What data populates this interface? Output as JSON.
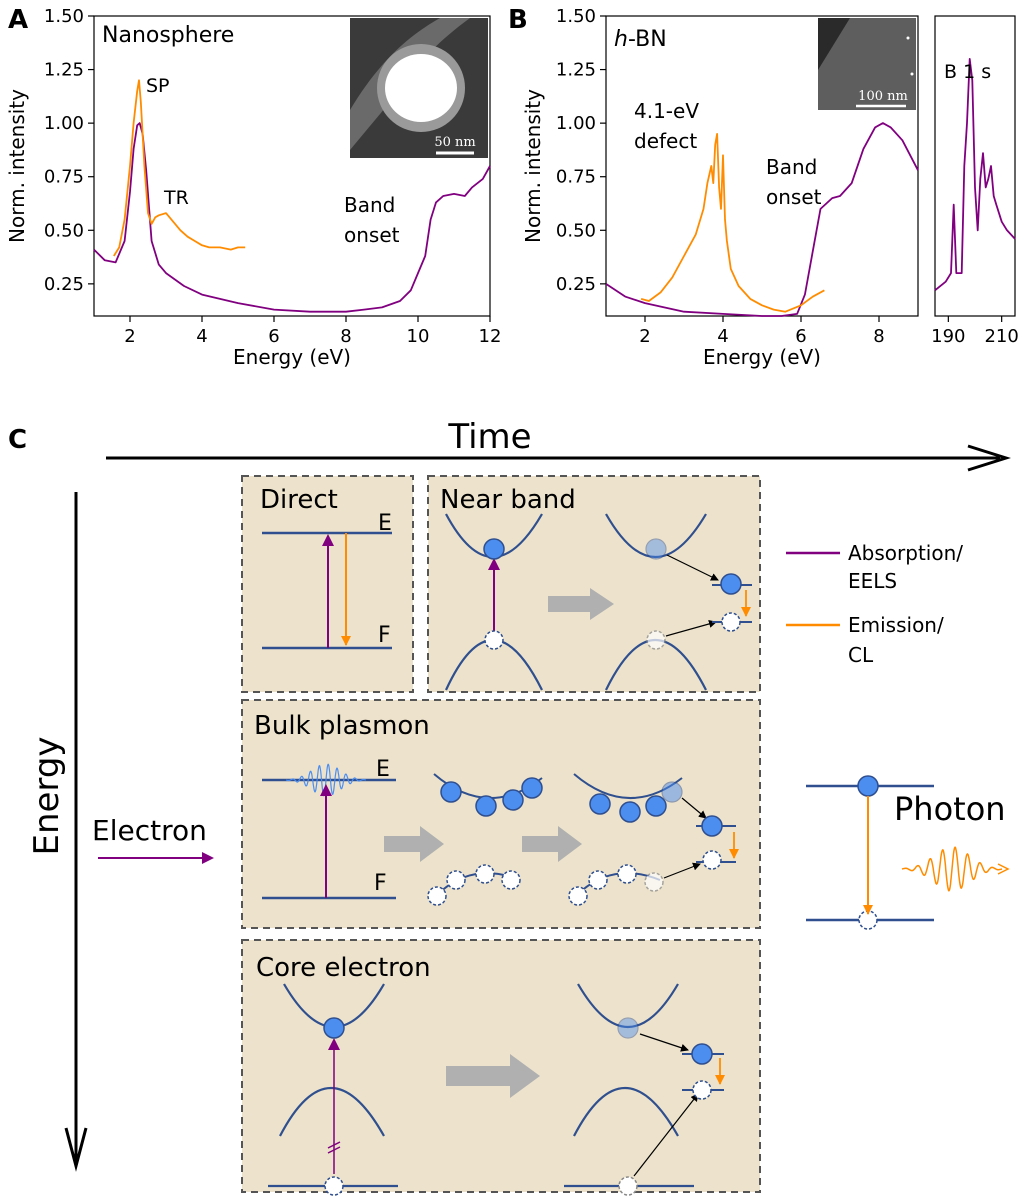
{
  "panels": {
    "A": {
      "letter": "A",
      "title": "Nanosphere",
      "xlabel": "Energy (eV)",
      "ylabel": "Norm. intensity",
      "xticks": [
        "2",
        "4",
        "6",
        "8",
        "10",
        "12"
      ],
      "yticks": [
        "0.25",
        "0.50",
        "0.75",
        "1.00",
        "1.25",
        "1.50"
      ],
      "annotations": {
        "sp": "SP",
        "tr": "TR",
        "band1": "Band",
        "band2": "onset"
      },
      "inset_scale": "50 nm"
    },
    "B": {
      "letter": "B",
      "title_italic": "h",
      "title_rest": "-BN",
      "xlabel": "Energy (eV)",
      "ylabel": "Norm. intensity",
      "xticks": [
        "2",
        "4",
        "6",
        "8"
      ],
      "yticks": [
        "0.25",
        "0.50",
        "0.75",
        "1.00",
        "1.25",
        "1.50"
      ],
      "annotations": {
        "defect1": "4.1-eV",
        "defect2": "defect",
        "band1": "Band",
        "band2": "onset"
      },
      "inset_scale": "100 nm",
      "side_title": "B 1 s",
      "side_xticks": [
        "190",
        "210"
      ]
    },
    "C": {
      "letter": "C",
      "time_label": "Time",
      "energy_label": "Energy",
      "electron_label": "Electron",
      "photon_label": "Photon",
      "legend": {
        "absorption1": "Absorption/",
        "absorption2": "EELS",
        "emission1": "Emission/",
        "emission2": "CL"
      },
      "boxes": {
        "direct": "Direct",
        "near_band": "Near band",
        "bulk_plasmon": "Bulk plasmon",
        "core_electron": "Core electron"
      },
      "level_E": "E",
      "level_F": "F"
    }
  },
  "colors": {
    "absorption": "#800080",
    "emission": "#ff8c00",
    "band": "#2f4f8f",
    "box_fill": "#ede3cc",
    "electron_fill": "#4c8df0",
    "arrow_gray": "#b0b0b0"
  },
  "chart_data": [
    {
      "type": "line",
      "panel": "A",
      "title": "Nanosphere",
      "xlabel": "Energy (eV)",
      "ylabel": "Norm. intensity",
      "xlim": [
        1,
        12
      ],
      "ylim": [
        0.1,
        1.5
      ],
      "grid": false,
      "series": [
        {
          "name": "Absorption/EELS",
          "color": "#800080",
          "x": [
            1.0,
            1.3,
            1.6,
            1.85,
            2.0,
            2.1,
            2.2,
            2.27,
            2.35,
            2.45,
            2.6,
            2.8,
            3.0,
            3.5,
            4.0,
            5.0,
            6.0,
            7.0,
            7.5,
            8.0,
            8.5,
            9.0,
            9.5,
            9.8,
            10.0,
            10.2,
            10.35,
            10.5,
            10.7,
            11.0,
            11.3,
            11.5,
            11.8,
            12.0
          ],
          "y": [
            0.41,
            0.36,
            0.35,
            0.45,
            0.68,
            0.88,
            0.99,
            1.0,
            0.95,
            0.78,
            0.45,
            0.34,
            0.3,
            0.24,
            0.2,
            0.16,
            0.13,
            0.12,
            0.12,
            0.12,
            0.13,
            0.14,
            0.17,
            0.22,
            0.3,
            0.38,
            0.55,
            0.63,
            0.66,
            0.67,
            0.66,
            0.7,
            0.74,
            0.8
          ]
        },
        {
          "name": "Emission/CL",
          "color": "#ff8c00",
          "x": [
            1.55,
            1.7,
            1.85,
            2.0,
            2.1,
            2.2,
            2.25,
            2.3,
            2.4,
            2.5,
            2.6,
            2.7,
            2.8,
            3.0,
            3.2,
            3.4,
            3.6,
            3.8,
            4.0,
            4.2,
            4.5,
            4.8,
            5.0,
            5.2
          ],
          "y": [
            0.38,
            0.42,
            0.55,
            0.8,
            1.0,
            1.15,
            1.2,
            1.1,
            0.8,
            0.58,
            0.53,
            0.56,
            0.57,
            0.58,
            0.54,
            0.5,
            0.47,
            0.45,
            0.43,
            0.42,
            0.42,
            0.41,
            0.42,
            0.42
          ]
        }
      ],
      "annotations": [
        "SP",
        "TR",
        "Band onset"
      ]
    },
    {
      "type": "line",
      "panel": "B",
      "title": "h-BN",
      "xlabel": "Energy (eV)",
      "ylabel": "Norm. intensity",
      "xlim": [
        1,
        9
      ],
      "ylim": [
        0.1,
        1.5
      ],
      "grid": false,
      "series": [
        {
          "name": "Absorption/EELS",
          "color": "#800080",
          "x": [
            1.0,
            1.5,
            2.0,
            3.0,
            4.0,
            5.0,
            5.5,
            5.9,
            6.1,
            6.3,
            6.5,
            6.8,
            7.0,
            7.3,
            7.6,
            7.9,
            8.1,
            8.3,
            8.6,
            9.0
          ],
          "y": [
            0.25,
            0.19,
            0.16,
            0.12,
            0.11,
            0.1,
            0.1,
            0.11,
            0.2,
            0.4,
            0.6,
            0.65,
            0.66,
            0.72,
            0.88,
            0.98,
            1.0,
            0.98,
            0.92,
            0.78
          ]
        },
        {
          "name": "Emission/CL",
          "color": "#ff8c00",
          "x": [
            1.9,
            2.1,
            2.4,
            2.7,
            3.0,
            3.3,
            3.5,
            3.6,
            3.7,
            3.75,
            3.8,
            3.85,
            3.9,
            3.95,
            4.0,
            4.05,
            4.1,
            4.2,
            4.4,
            4.7,
            5.0,
            5.3,
            5.6,
            6.0,
            6.3,
            6.6
          ],
          "y": [
            0.18,
            0.17,
            0.21,
            0.28,
            0.38,
            0.48,
            0.6,
            0.72,
            0.8,
            0.72,
            0.9,
            0.95,
            0.7,
            0.6,
            0.85,
            0.55,
            0.45,
            0.32,
            0.24,
            0.18,
            0.15,
            0.13,
            0.12,
            0.15,
            0.19,
            0.22
          ]
        }
      ],
      "annotations": [
        "4.1-eV defect",
        "Band onset"
      ]
    },
    {
      "type": "line",
      "panel": "B-inset",
      "title": "B 1 s",
      "xlim": [
        185,
        215
      ],
      "grid": false,
      "series": [
        {
          "name": "Absorption/EELS",
          "color": "#800080",
          "x": [
            185,
            189,
            191,
            192,
            193,
            195,
            196,
            197,
            198,
            199,
            200,
            201,
            202,
            203,
            204,
            205,
            206,
            207,
            208,
            210,
            212,
            215
          ],
          "y": [
            0.46,
            0.48,
            0.5,
            0.66,
            0.5,
            0.5,
            0.75,
            0.85,
            1.0,
            0.95,
            0.7,
            0.6,
            0.72,
            0.78,
            0.7,
            0.72,
            0.75,
            0.68,
            0.66,
            0.62,
            0.6,
            0.58
          ]
        }
      ]
    }
  ]
}
